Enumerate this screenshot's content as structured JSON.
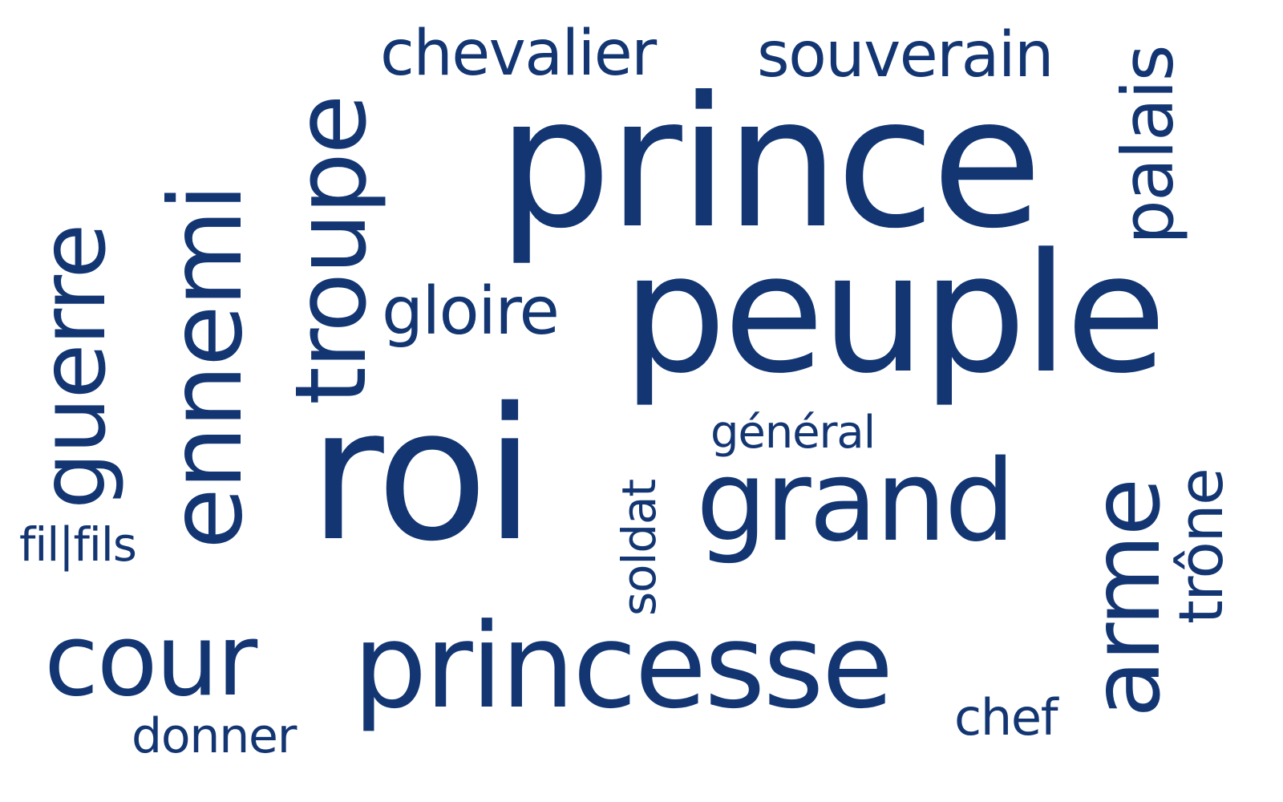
{
  "color": "#133673",
  "words": {
    "prince": "prince",
    "peuple": "peuple",
    "roi": "roi",
    "grand": "grand",
    "princesse": "princesse",
    "cour": "cour",
    "guerre": "guerre",
    "ennemi": "ennemi",
    "troupe": "troupe",
    "arme": "arme",
    "chevalier": "chevalier",
    "souverain": "souverain",
    "palais": "palais",
    "gloire": "gloire",
    "general": "général",
    "soldat": "soldat",
    "trone": "trône",
    "fil_fils": "fil|fils",
    "donner": "donner",
    "chef": "chef"
  }
}
